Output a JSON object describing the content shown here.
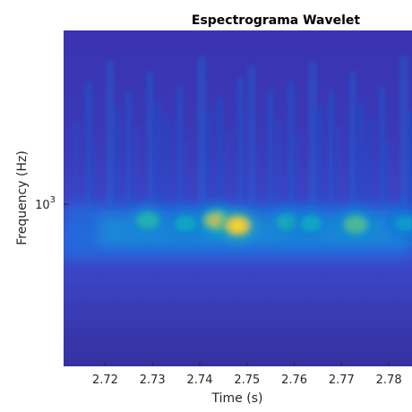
{
  "chart_data": {
    "type": "heatmap",
    "title": "Espectrograma Wavelet",
    "xlabel": "Time (s)",
    "ylabel": "Frequency (Hz)",
    "x_ticks": [
      "2.72",
      "2.73",
      "2.74",
      "2.75",
      "2.76",
      "2.77",
      "2.78"
    ],
    "x_tick_values": [
      2.72,
      2.73,
      2.74,
      2.75,
      2.76,
      2.77,
      2.78
    ],
    "xlim": [
      2.7112,
      2.7849
    ],
    "y_scale": "log",
    "y_tick_label": "10",
    "y_tick_exponent": "3",
    "y_tick_value": 1000,
    "colormap": "parula",
    "colormap_stops": [
      "#352a87",
      "#3e3ebe",
      "#0f5cdd",
      "#1481d6",
      "#06a4ca",
      "#2eb7a4",
      "#87bf77",
      "#d1bb59",
      "#fec832",
      "#f9fb0e"
    ],
    "energy_band_frequency": 800,
    "energy_peaks": [
      {
        "time": 2.729,
        "frequency": 820,
        "intensity": 0.62
      },
      {
        "time": 2.737,
        "frequency": 790,
        "intensity": 0.55
      },
      {
        "time": 2.7435,
        "frequency": 820,
        "intensity": 0.8
      },
      {
        "time": 2.748,
        "frequency": 770,
        "intensity": 0.95
      },
      {
        "time": 2.7585,
        "frequency": 800,
        "intensity": 0.58
      },
      {
        "time": 2.7635,
        "frequency": 790,
        "intensity": 0.55
      },
      {
        "time": 2.773,
        "frequency": 780,
        "intensity": 0.7
      },
      {
        "time": 2.7835,
        "frequency": 790,
        "intensity": 0.5
      }
    ]
  }
}
